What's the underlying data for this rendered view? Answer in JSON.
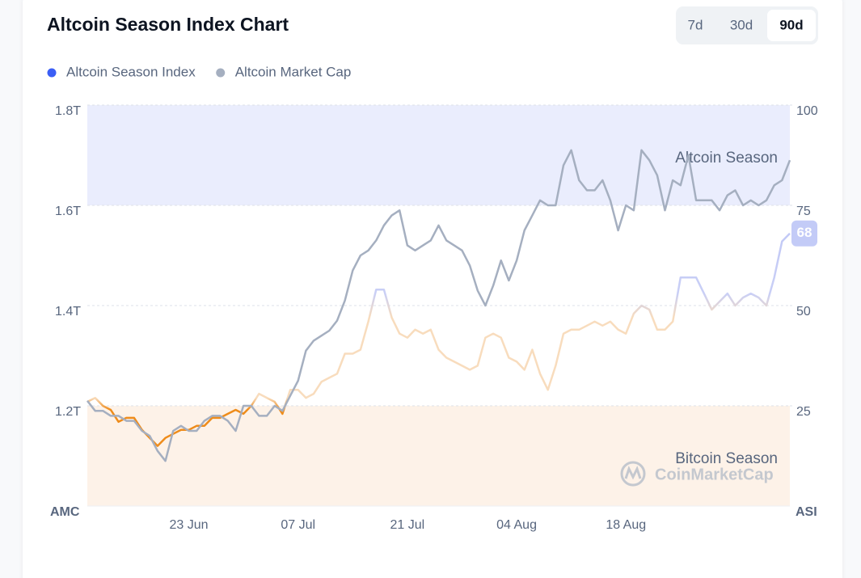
{
  "chart_data": {
    "type": "line",
    "title": "Altcoin Season Index Chart",
    "ranges": [
      "7d",
      "30d",
      "90d"
    ],
    "selected_range": "90d",
    "ylabel": "AMC",
    "y2label": "ASI",
    "categories": [
      null,
      null,
      null,
      null,
      null,
      null,
      null,
      null,
      null,
      null,
      null,
      null,
      null,
      "23 Jun",
      null,
      null,
      null,
      null,
      null,
      null,
      null,
      null,
      null,
      null,
      null,
      null,
      null,
      "07 Jul",
      null,
      null,
      null,
      null,
      null,
      null,
      null,
      null,
      null,
      null,
      null,
      null,
      null,
      "21 Jul",
      null,
      null,
      null,
      null,
      null,
      null,
      null,
      null,
      null,
      null,
      null,
      null,
      null,
      "04 Aug",
      null,
      null,
      null,
      null,
      null,
      null,
      null,
      null,
      null,
      null,
      null,
      null,
      null,
      "18 Aug",
      null,
      null,
      null,
      null,
      null,
      null,
      null,
      null,
      null,
      null,
      null,
      null,
      null,
      null,
      null,
      null,
      null,
      null,
      null,
      null,
      null
    ],
    "series": [
      {
        "name": "Altcoin Season Index",
        "color": "#3b5ef5",
        "axis": "y2",
        "values": [
          26,
          27,
          25,
          24,
          21,
          22,
          22,
          19,
          17,
          15,
          17,
          18,
          19,
          19,
          20,
          20,
          22,
          22,
          23,
          24,
          23,
          25,
          28,
          27,
          26,
          23,
          29,
          29,
          27,
          28,
          31,
          32,
          33,
          38,
          38,
          39,
          46,
          54,
          54,
          47,
          43,
          42,
          44,
          43,
          44,
          39,
          37,
          36,
          35,
          34,
          35,
          42,
          43,
          42,
          37,
          36,
          34,
          39,
          33,
          29,
          35,
          43,
          44,
          44,
          45,
          46,
          45,
          46,
          44,
          43,
          48,
          50,
          49,
          44,
          44,
          46,
          57,
          57,
          57,
          53,
          49,
          51,
          53,
          50,
          52,
          53,
          52,
          50,
          57,
          66,
          68
        ]
      },
      {
        "name": "Altcoin Market Cap",
        "color": "#a5afc0",
        "values": [
          1210000000000.0,
          1190000000000.0,
          1190000000000.0,
          1180000000000.0,
          1180000000000.0,
          1170000000000.0,
          1170000000000.0,
          1150000000000.0,
          1140000000000.0,
          1110000000000.0,
          1090000000000.0,
          1150000000000.0,
          1160000000000.0,
          1150000000000.0,
          1150000000000.0,
          1170000000000.0,
          1180000000000.0,
          1180000000000.0,
          1170000000000.0,
          1150000000000.0,
          1200000000000.0,
          1200000000000.0,
          1180000000000.0,
          1180000000000.0,
          1200000000000.0,
          1190000000000.0,
          1220000000000.0,
          1250000000000.0,
          1310000000000.0,
          1330000000000.0,
          1340000000000.0,
          1350000000000.0,
          1370000000000.0,
          1410000000000.0,
          1470000000000.0,
          1500000000000.0,
          1510000000000.0,
          1530000000000.0,
          1560000000000.0,
          1580000000000.0,
          1590000000000.0,
          1520000000000.0,
          1510000000000.0,
          1520000000000.0,
          1530000000000.0,
          1560000000000.0,
          1530000000000.0,
          1520000000000.0,
          1510000000000.0,
          1480000000000.0,
          1430000000000.0,
          1400000000000.0,
          1440000000000.0,
          1490000000000.0,
          1450000000000.0,
          1490000000000.0,
          1550000000000.0,
          1580000000000.0,
          1610000000000.0,
          1600000000000.0,
          1600000000000.0,
          1680000000000.0,
          1710000000000.0,
          1650000000000.0,
          1630000000000.0,
          1630000000000.0,
          1650000000000.0,
          1610000000000.0,
          1550000000000.0,
          1600000000000.0,
          1590000000000.0,
          1710000000000.0,
          1690000000000.0,
          1660000000000.0,
          1590000000000.0,
          1650000000000.0,
          1640000000000.0,
          1700000000000.0,
          1610000000000.0,
          1610000000000.0,
          1610000000000.0,
          1590000000000.0,
          1620000000000.0,
          1630000000000.0,
          1600000000000.0,
          1610000000000.0,
          1600000000000.0,
          1610000000000.0,
          1640000000000.0,
          1650000000000.0,
          1690000000000.0
        ]
      }
    ],
    "ylim": [
      1000000000000.0,
      1800000000000.0
    ],
    "yticks": [
      {
        "value": 1200000000000.0,
        "label": "1.2T"
      },
      {
        "value": 1400000000000.0,
        "label": "1.4T"
      },
      {
        "value": 1600000000000.0,
        "label": "1.6T"
      },
      {
        "value": 1800000000000.0,
        "label": "1.8T"
      }
    ],
    "y2lim": [
      0,
      100
    ],
    "y2ticks": [
      25,
      50,
      75,
      100
    ],
    "grid": true,
    "bands": [
      {
        "label": "Altcoin Season",
        "from": 75,
        "to": 100,
        "color": "#eaedfd"
      },
      {
        "label": "Bitcoin Season",
        "from": 0,
        "to": 25,
        "color": "#fdf2e8"
      }
    ],
    "watermark": "CoinMarketCap"
  }
}
